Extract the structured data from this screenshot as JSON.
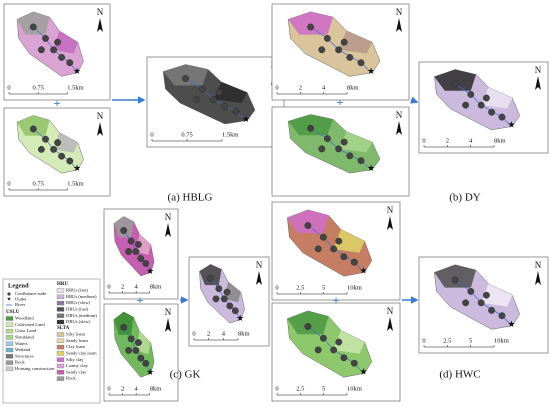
{
  "captions": [
    "(a) HBLG",
    "(b) DY",
    "(c) GK",
    "(d) HWC"
  ],
  "maps": [
    {
      "north": "N",
      "scale": [
        "0",
        "0.75",
        "1.5km"
      ]
    },
    {
      "north": "N",
      "scale": [
        "0",
        "0.75",
        "1.5km"
      ]
    },
    {
      "north": "N",
      "scale": [
        "0",
        "0.75",
        "1.5km"
      ]
    },
    {
      "north": "N",
      "scale": [
        "0",
        "2",
        "4",
        "8km"
      ]
    },
    {
      "north": "N",
      "scale": []
    },
    {
      "north": "N",
      "scale": [
        "0",
        "2",
        "4",
        "8km"
      ]
    },
    {
      "north": "N",
      "scale": [
        "0",
        "2",
        "4",
        "8km"
      ]
    },
    {
      "north": "N",
      "scale": [
        "0",
        "2",
        "4",
        "8km"
      ]
    },
    {
      "north": "N",
      "scale": [
        "0",
        "2",
        "4",
        "8km"
      ]
    },
    {
      "north": "N",
      "scale": [
        "0",
        "2.5",
        "5",
        "10km"
      ]
    },
    {
      "north": "N",
      "scale": [
        "0",
        "2.5",
        "5",
        "10km"
      ]
    },
    {
      "north": "N",
      "scale": [
        "0",
        "2.5",
        "5",
        "10km"
      ]
    }
  ],
  "legend": {
    "title": "Legend",
    "symbols": [
      "Confluence node",
      "Outlet",
      "River"
    ],
    "uslu": {
      "title": "USLU",
      "items": [
        "Woodland",
        "Cultivated Land",
        "Grass Land",
        "Shrubland",
        "Waters",
        "Wetland",
        "Structures",
        "Rock",
        "Housing construction"
      ]
    },
    "hru": {
      "title": "HRU",
      "items": [
        "RRUs (fast)",
        "RRUs (medium)",
        "RRUs (slow)",
        "DRUs (fast)",
        "DRUs (medium)",
        "DRUs (slow)"
      ]
    },
    "slta": {
      "title": "SLTA",
      "items": [
        "Silty loam",
        "Sandy loam",
        "Clay loam",
        "Sandy clay loam",
        "Silty clay",
        "Loamy clay",
        "Sandy clay",
        "Rock"
      ]
    }
  }
}
